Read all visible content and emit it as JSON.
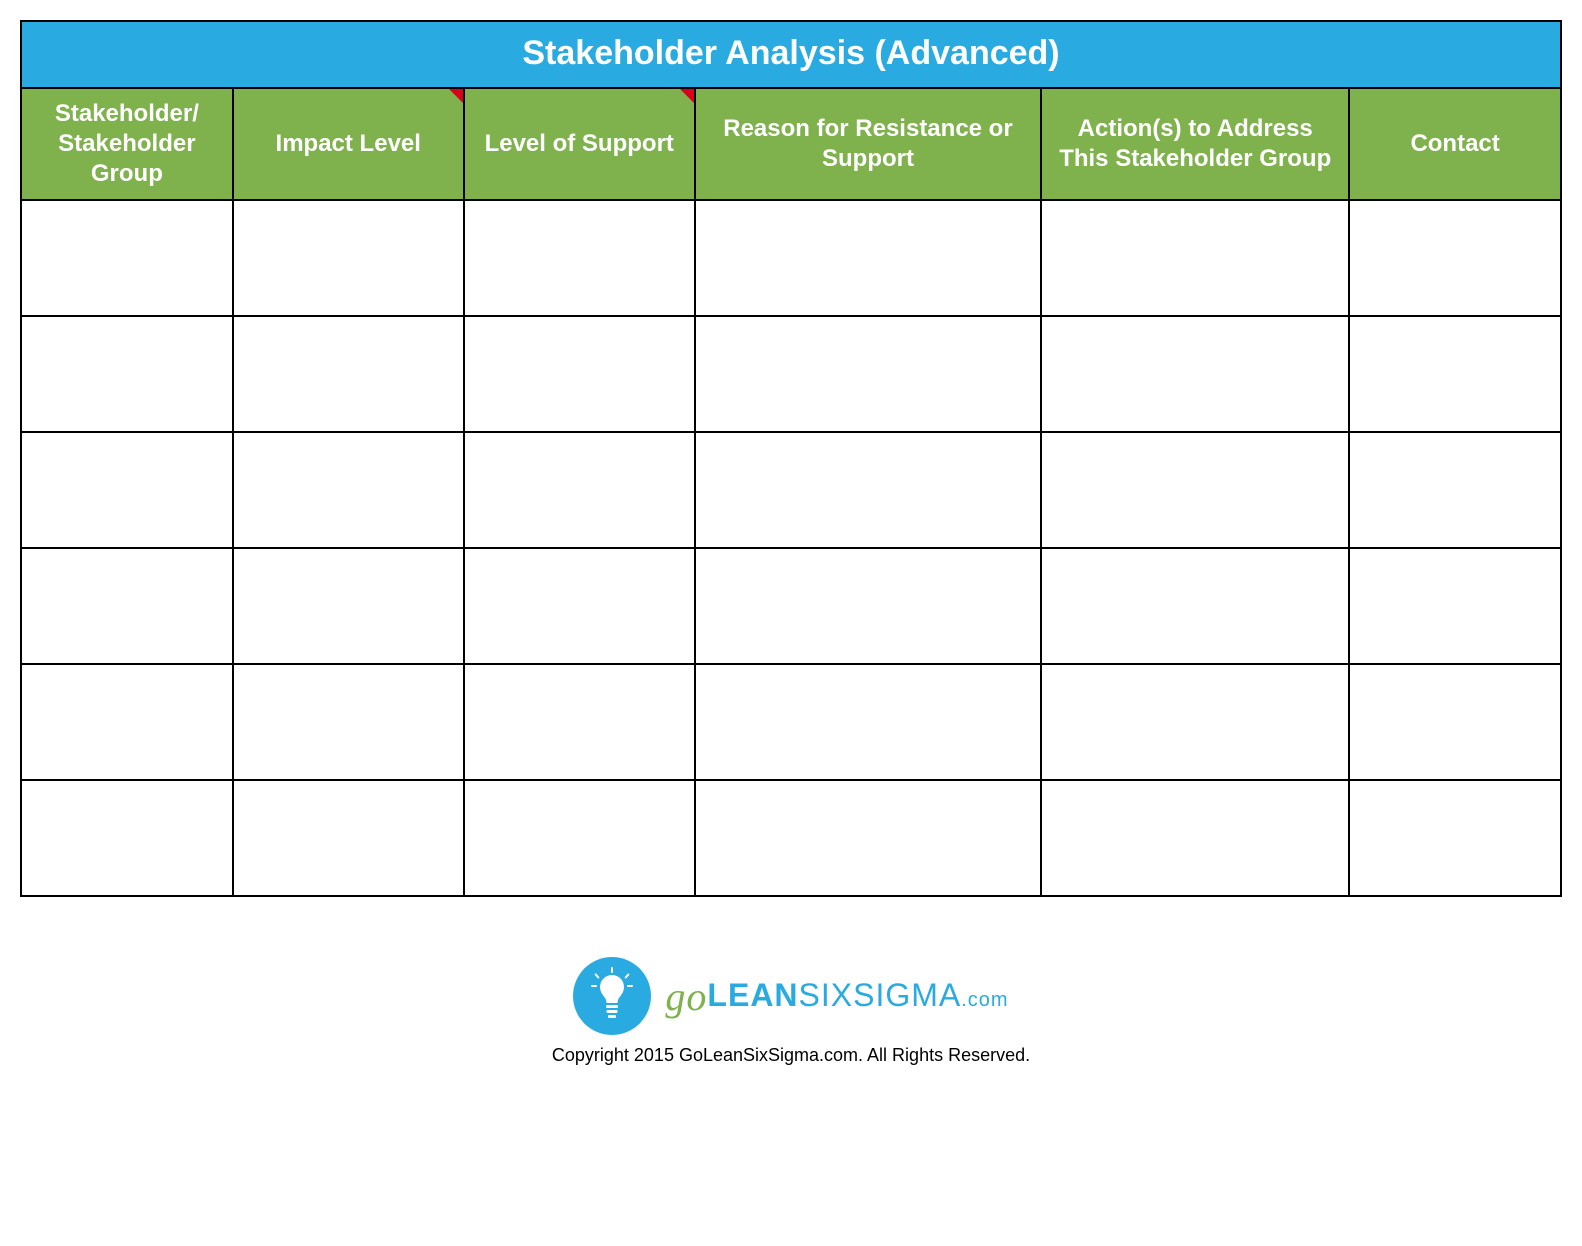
{
  "title": "Stakeholder Analysis (Advanced)",
  "colors": {
    "title_bg": "#29abe2",
    "header_bg": "#7fb14d",
    "header_text": "#ffffff",
    "border": "#000000",
    "cell_bg": "#ffffff",
    "flag": "#d9001b",
    "logo_circle": "#29abe2",
    "logo_go": "#7fb14d",
    "logo_text": "#29abe2"
  },
  "columns": [
    {
      "label": "Stakeholder/ Stakeholder Group",
      "width_pct": 11,
      "has_flag": false
    },
    {
      "label": "Impact Level",
      "width_pct": 12,
      "has_flag": true
    },
    {
      "label": "Level of Support",
      "width_pct": 12,
      "has_flag": true
    },
    {
      "label": "Reason for Resistance or Support",
      "width_pct": 18,
      "has_flag": false
    },
    {
      "label": "Action(s) to Address This Stakeholder Group",
      "width_pct": 16,
      "has_flag": false
    },
    {
      "label": "Contact",
      "width_pct": 11,
      "has_flag": false
    }
  ],
  "row_count": 6,
  "logo": {
    "go": "go",
    "lean": "LEAN",
    "six": "SIX",
    "sigma": "SIGMA",
    "dotcom": ".com"
  },
  "copyright": "Copyright 2015 GoLeanSixSigma.com. All Rights Reserved."
}
